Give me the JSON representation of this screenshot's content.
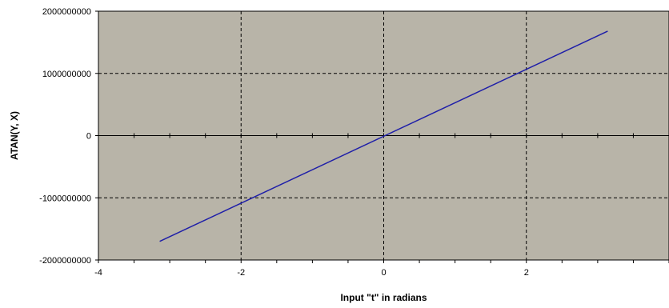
{
  "chart_data": {
    "type": "line",
    "title": "",
    "xlabel": "Input \"t\" in radians",
    "ylabel": "ATAN(Y, X)",
    "xlim": [
      -4,
      4
    ],
    "ylim": [
      -2000000000,
      2000000000
    ],
    "x_ticks": [
      -4,
      -2,
      0,
      2
    ],
    "x_tick_labels": [
      "-4",
      "-2",
      "0",
      "2"
    ],
    "y_ticks": [
      -2000000000,
      -1000000000,
      0,
      1000000000,
      2000000000
    ],
    "y_tick_labels": [
      "-2000000000",
      "-1000000000",
      "0",
      "1000000000",
      "2000000000"
    ],
    "grid": true,
    "legend": "none",
    "colors": {
      "plot_background": "#b8b4a8",
      "series_line": "#1f1fa8",
      "grid_line": "#000000"
    },
    "series": [
      {
        "x": [
          -3.14,
          3.14
        ],
        "y": [
          -1700000000,
          1680000000
        ]
      }
    ]
  }
}
